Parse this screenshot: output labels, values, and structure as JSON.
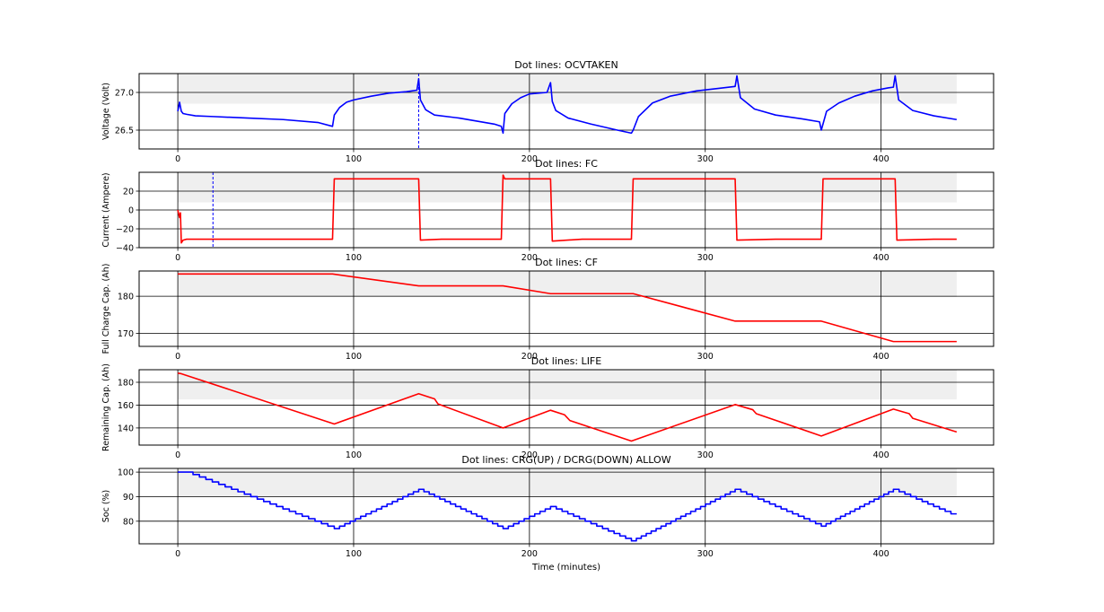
{
  "xlabel": "Time (minutes)",
  "chart_data": [
    {
      "type": "line",
      "title": "Dot lines: OCVTAKEN",
      "xlabel": "",
      "ylabel": "Voltage (Volt)",
      "xlim": [
        -22,
        464
      ],
      "ylim": [
        26.25,
        27.25
      ],
      "xticks": [
        0,
        100,
        200,
        300,
        400
      ],
      "yticks": [
        26.5,
        27.0
      ],
      "ytick_labels": [
        "26.5",
        "27.0"
      ],
      "grid": true,
      "shaded_band": [
        26.85,
        27.25
      ],
      "dotted_vlines": [
        137
      ],
      "series": [
        {
          "color": "#0000ff",
          "x": [
            0,
            1,
            2,
            3,
            5,
            10,
            20,
            40,
            60,
            80,
            88,
            89,
            92,
            96,
            100,
            110,
            120,
            130,
            136,
            137,
            138,
            141,
            146,
            160,
            170,
            180,
            184,
            185,
            186,
            190,
            195,
            200,
            210,
            212,
            213,
            215,
            222,
            235,
            250,
            258,
            259,
            262,
            270,
            280,
            295,
            310,
            317,
            318,
            320,
            328,
            340,
            355,
            365,
            366,
            369,
            376,
            385,
            395,
            404,
            407,
            408,
            410,
            418,
            430,
            443
          ],
          "y": [
            26.75,
            26.87,
            26.75,
            26.72,
            26.71,
            26.69,
            26.68,
            26.66,
            26.64,
            26.6,
            26.55,
            26.7,
            26.8,
            26.87,
            26.9,
            26.95,
            26.99,
            27.01,
            27.03,
            27.18,
            26.9,
            26.77,
            26.7,
            26.66,
            26.62,
            26.58,
            26.55,
            26.46,
            26.72,
            26.85,
            26.93,
            26.98,
            27.0,
            27.13,
            26.88,
            26.76,
            26.66,
            26.58,
            26.5,
            26.46,
            26.5,
            26.68,
            26.86,
            26.95,
            27.02,
            27.06,
            27.08,
            27.22,
            26.93,
            26.78,
            26.7,
            26.65,
            26.61,
            26.5,
            26.75,
            26.86,
            26.95,
            27.02,
            27.06,
            27.07,
            27.22,
            26.9,
            26.76,
            26.69,
            26.64
          ]
        }
      ]
    },
    {
      "type": "line",
      "title": "Dot lines: FC",
      "xlabel": "",
      "ylabel": "Current (Ampere)",
      "xlim": [
        -22,
        464
      ],
      "ylim": [
        -40,
        40
      ],
      "xticks": [
        0,
        100,
        200,
        300,
        400
      ],
      "yticks": [
        -40,
        -20,
        0,
        20
      ],
      "ytick_labels": [
        "−40",
        "−20",
        "0",
        "20"
      ],
      "grid": true,
      "shaded_band": [
        8,
        40
      ],
      "dotted_vlines": [
        20
      ],
      "series": [
        {
          "color": "#ff0000",
          "x": [
            0,
            1,
            1.5,
            2,
            3,
            5,
            20,
            50,
            88,
            89,
            137,
            138,
            150,
            184,
            185,
            186,
            212,
            213,
            230,
            258,
            259,
            317,
            318,
            340,
            366,
            367,
            408,
            409,
            430,
            443
          ],
          "y": [
            0,
            -8,
            -3,
            -35,
            -32,
            -31,
            -31,
            -31,
            -31,
            33,
            33,
            -32,
            -31,
            -31,
            37,
            33,
            33,
            -33,
            -31,
            -31,
            33,
            33,
            -32,
            -31,
            -31,
            33,
            33,
            -32,
            -31,
            -31
          ]
        }
      ]
    },
    {
      "type": "line",
      "title": "Dot lines: CF",
      "xlabel": "",
      "ylabel": "Full Charge Cap. (Ah)",
      "xlim": [
        -22,
        464
      ],
      "ylim": [
        166.5,
        186.8
      ],
      "xticks": [
        0,
        100,
        200,
        300,
        400
      ],
      "yticks": [
        170,
        180
      ],
      "ytick_labels": [
        "170",
        "180"
      ],
      "grid": true,
      "shaded_band": [
        179.8,
        186.8
      ],
      "dotted_vlines": [],
      "series": [
        {
          "color": "#ff0000",
          "x": [
            0,
            88,
            137,
            185,
            212,
            259,
            317,
            366,
            407,
            443
          ],
          "y": [
            186,
            186,
            182.8,
            182.8,
            180.7,
            180.7,
            173.3,
            173.3,
            167.8,
            167.8
          ]
        }
      ]
    },
    {
      "type": "line",
      "title": "Dot lines: LIFE",
      "xlabel": "",
      "ylabel": "Remaining Cap. (Ah)",
      "xlim": [
        -22,
        464
      ],
      "ylim": [
        125,
        191
      ],
      "xticks": [
        0,
        100,
        200,
        300,
        400
      ],
      "yticks": [
        140,
        160,
        180
      ],
      "ytick_labels": [
        "140",
        "160",
        "180"
      ],
      "grid": true,
      "shaded_band": [
        165,
        191
      ],
      "dotted_vlines": [],
      "series": [
        {
          "color": "#ff0000",
          "x": [
            0,
            2,
            89,
            137,
            146,
            148,
            185,
            212,
            220,
            223,
            258,
            317,
            327,
            329,
            366,
            407,
            416,
            418,
            443
          ],
          "y": [
            188,
            187.5,
            143.5,
            170,
            165.5,
            161,
            140,
            155.5,
            151.5,
            146.5,
            128.5,
            160.5,
            156,
            152.5,
            133,
            156.5,
            152.5,
            148.5,
            136.5
          ]
        }
      ]
    },
    {
      "type": "line",
      "title": "Dot lines: CRG(UP) / DCRG(DOWN) ALLOW",
      "xlabel": "Time (minutes)",
      "ylabel": "Soc (%)",
      "xlim": [
        -22,
        464
      ],
      "ylim": [
        70.8,
        101.5
      ],
      "xticks": [
        0,
        100,
        200,
        300,
        400
      ],
      "yticks": [
        80,
        90,
        100
      ],
      "ytick_labels": [
        "80",
        "90",
        "100"
      ],
      "grid": true,
      "shaded_band": [
        90,
        101.5
      ],
      "dotted_vlines": [],
      "series": [
        {
          "color": "#0000ff",
          "step": true,
          "x": [
            0,
            5,
            89,
            137,
            185,
            212,
            258,
            317,
            366,
            407,
            443
          ],
          "y": [
            100,
            100,
            77,
            93,
            77,
            86,
            72,
            93,
            78,
            93,
            82
          ]
        }
      ]
    }
  ]
}
